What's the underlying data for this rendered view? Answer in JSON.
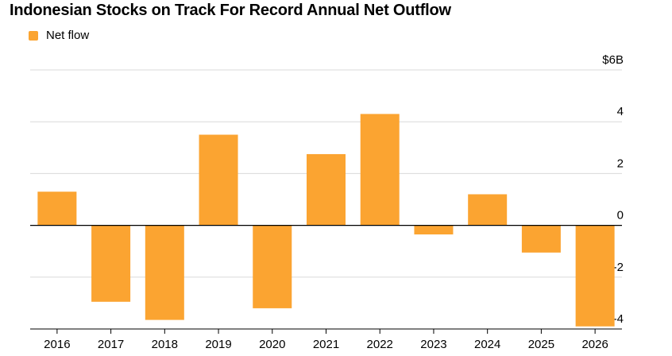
{
  "chart_data": {
    "type": "bar",
    "title": "Indonesian Stocks on Track For Record Annual Net Outflow",
    "categories": [
      "2016",
      "2017",
      "2018",
      "2019",
      "2020",
      "2021",
      "2022",
      "2023",
      "2024",
      "2025",
      "2026"
    ],
    "series": [
      {
        "name": "Net flow",
        "values": [
          1.3,
          -2.95,
          -3.65,
          3.5,
          -3.2,
          2.75,
          4.3,
          -0.35,
          1.2,
          -1.05,
          -3.9
        ]
      }
    ],
    "ylim": [
      -4,
      6
    ],
    "yticks": [
      {
        "value": 6,
        "label": "$6B"
      },
      {
        "value": 4,
        "label": "4"
      },
      {
        "value": 2,
        "label": "2"
      },
      {
        "value": 0,
        "label": "0"
      },
      {
        "value": -2,
        "label": "-2"
      },
      {
        "value": -4,
        "label": "-4"
      }
    ],
    "grid": true,
    "legend_position": "top-left",
    "bar_color": "#FBA431",
    "xlabel": "",
    "ylabel": ""
  }
}
